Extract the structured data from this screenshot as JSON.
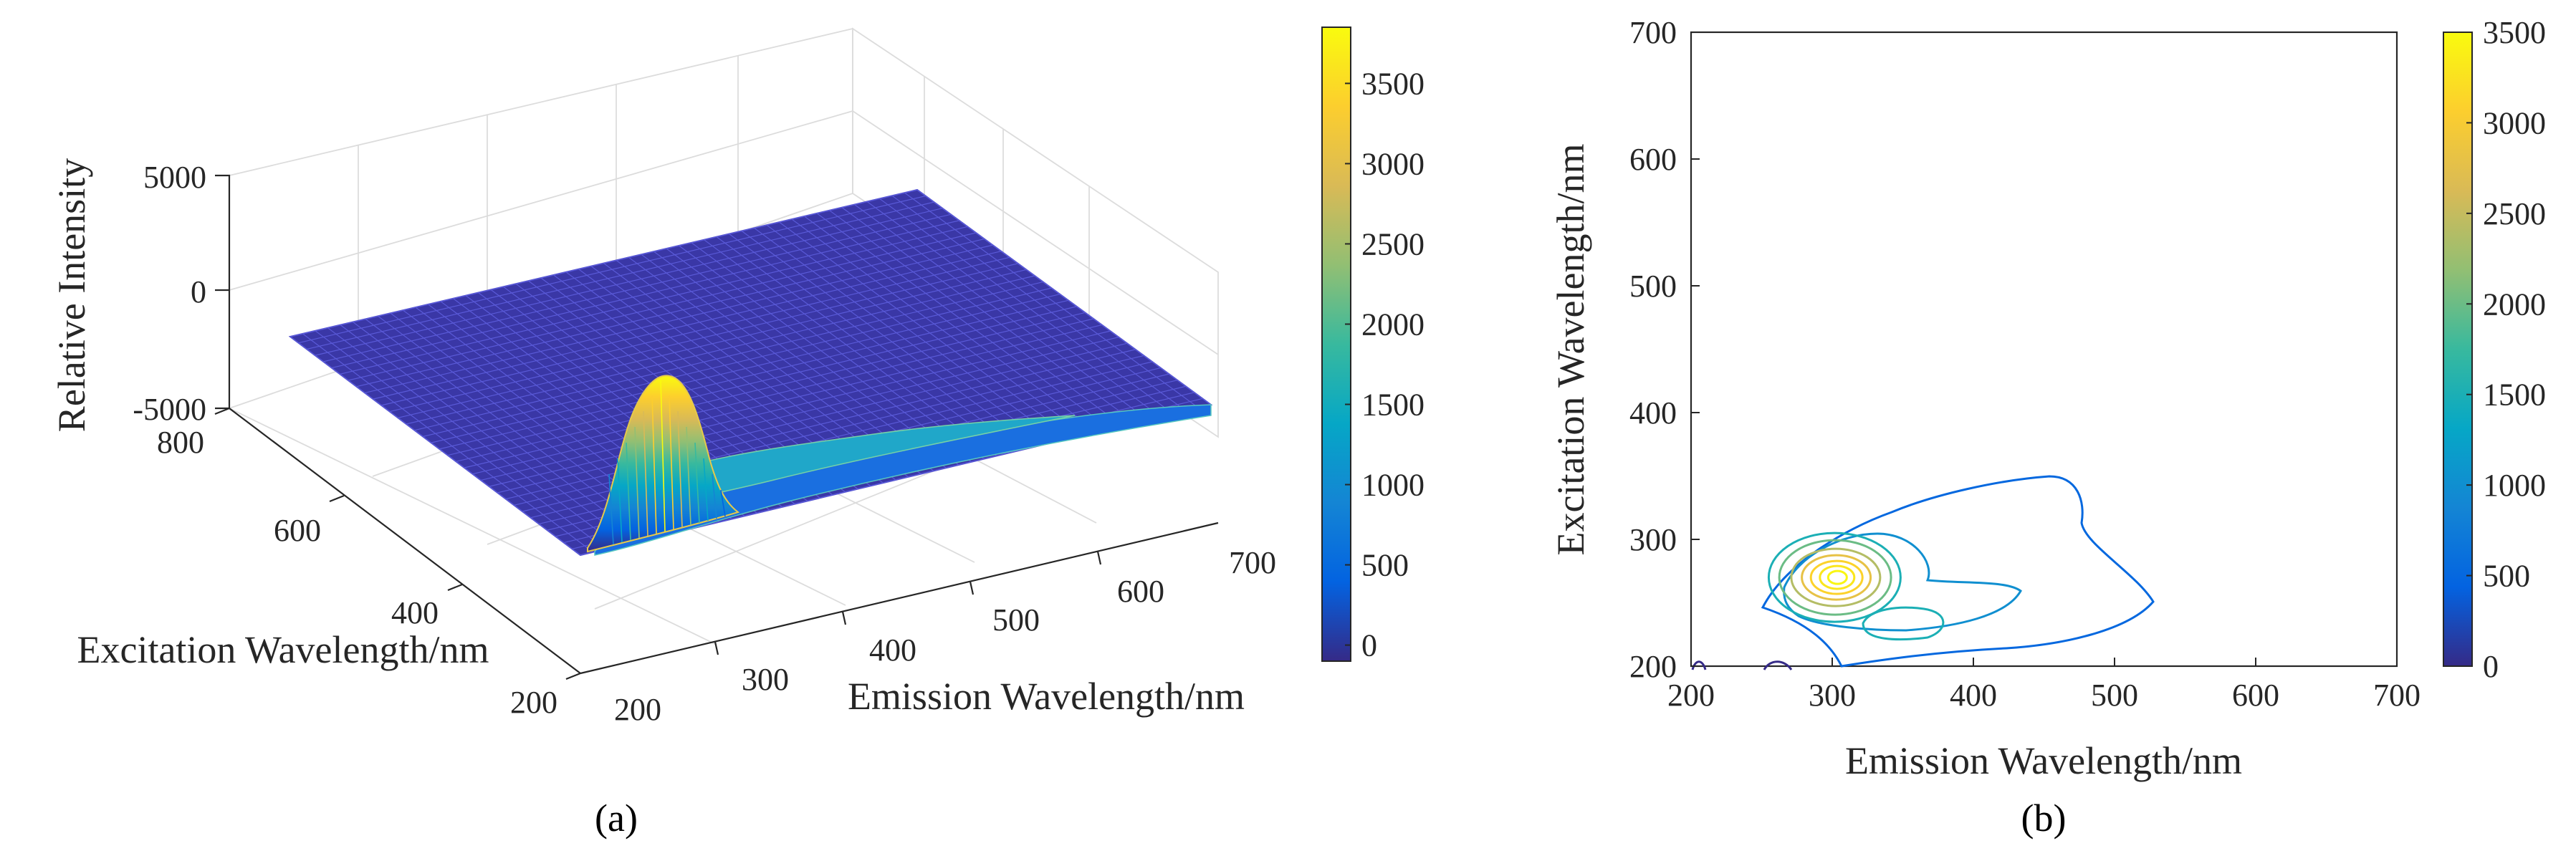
{
  "chart_data": [
    {
      "id": "a",
      "type": "surface3d",
      "caption": "(a)",
      "xlabel": "Emission Wavelength/nm",
      "ylabel": "Excitation Wavelength/nm",
      "zlabel": "Relative Intensity",
      "xlim": [
        200,
        700
      ],
      "ylim": [
        200,
        800
      ],
      "zlim": [
        -5000,
        5000
      ],
      "x_ticks": [
        "200",
        "300",
        "400",
        "500",
        "600",
        "700"
      ],
      "y_ticks": [
        "200",
        "400",
        "600",
        "800"
      ],
      "z_ticks": [
        "-5000",
        "0",
        "5000"
      ],
      "colorbar": {
        "min": -100,
        "max": 3850,
        "ticks": [
          "0",
          "500",
          "1000",
          "1500",
          "2000",
          "2500",
          "3000",
          "3500"
        ]
      },
      "peaks": [
        {
          "em": 290,
          "ex": 275,
          "intensity": 3850
        },
        {
          "em": 350,
          "ex": 230,
          "intensity": 1500
        },
        {
          "em": 450,
          "ex": 360,
          "intensity": 700
        }
      ]
    },
    {
      "id": "b",
      "type": "contour",
      "caption": "(b)",
      "xlabel": "Emission Wavelength/nm",
      "ylabel": "Excitation Wavelength/nm",
      "xlim": [
        200,
        700
      ],
      "ylim": [
        200,
        700
      ],
      "x_ticks": [
        "200",
        "300",
        "400",
        "500",
        "600",
        "700"
      ],
      "y_ticks": [
        "200",
        "300",
        "400",
        "500",
        "600",
        "700"
      ],
      "colorbar": {
        "min": 0,
        "max": 3500,
        "ticks": [
          "0",
          "500",
          "1000",
          "1500",
          "2000",
          "2500",
          "3000",
          "3500"
        ]
      },
      "contour_levels": [
        500,
        1000,
        1500,
        2000,
        2500,
        3000,
        3400
      ],
      "peaks": [
        {
          "em": 300,
          "ex": 270,
          "intensity": 3500
        },
        {
          "em": 350,
          "ex": 235,
          "intensity": 1200
        }
      ]
    }
  ]
}
